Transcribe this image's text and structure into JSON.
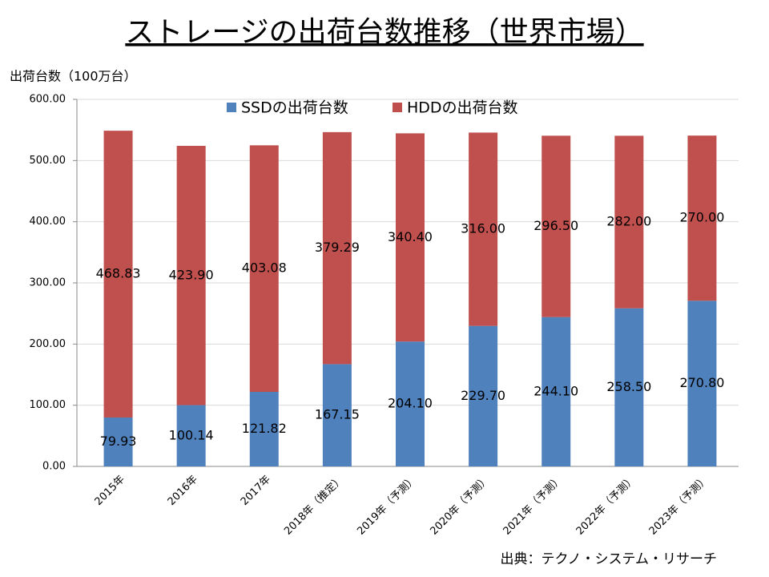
{
  "chart_data": {
    "type": "stacked_bar",
    "title": "ストレージの出荷台数推移（世界市場）",
    "y_label": "出荷台数（100万台）",
    "source": "出典：テクノ・システム・リサーチ",
    "categories": [
      "2015年",
      "2016年",
      "2017年",
      "2018年（推定）",
      "2019年（予測）",
      "2020年（予測）",
      "2021年（予測）",
      "2022年（予測）",
      "2023年（予測）"
    ],
    "series": [
      {
        "name": "SSDの出荷台数",
        "color": "#4f81bd",
        "values": [
          79.93,
          100.14,
          121.82,
          167.15,
          204.1,
          229.7,
          244.1,
          258.5,
          270.8
        ],
        "value_labels": [
          "79.93",
          "100.14",
          "121.82",
          "167.15",
          "204.10",
          "229.70",
          "244.10",
          "258.50",
          "270.80"
        ]
      },
      {
        "name": "HDDの出荷台数",
        "color": "#c0504d",
        "values": [
          468.83,
          423.9,
          403.08,
          379.29,
          340.4,
          316,
          296.5,
          282,
          270
        ],
        "value_labels": [
          "468.83",
          "423.90",
          "403.08",
          "379.29",
          "340.40",
          "316.00",
          "296.50",
          "282.00",
          "270.00"
        ]
      }
    ],
    "ylim": [
      0,
      600
    ],
    "yticks": [
      {
        "value": 0,
        "label": "0.00"
      },
      {
        "value": 100,
        "label": "100.00"
      },
      {
        "value": 200,
        "label": "200.00"
      },
      {
        "value": 300,
        "label": "300.00"
      },
      {
        "value": 400,
        "label": "400.00"
      },
      {
        "value": 500,
        "label": "500.00"
      },
      {
        "value": 600,
        "label": "600.00"
      }
    ],
    "grid": true,
    "legend": "top"
  }
}
